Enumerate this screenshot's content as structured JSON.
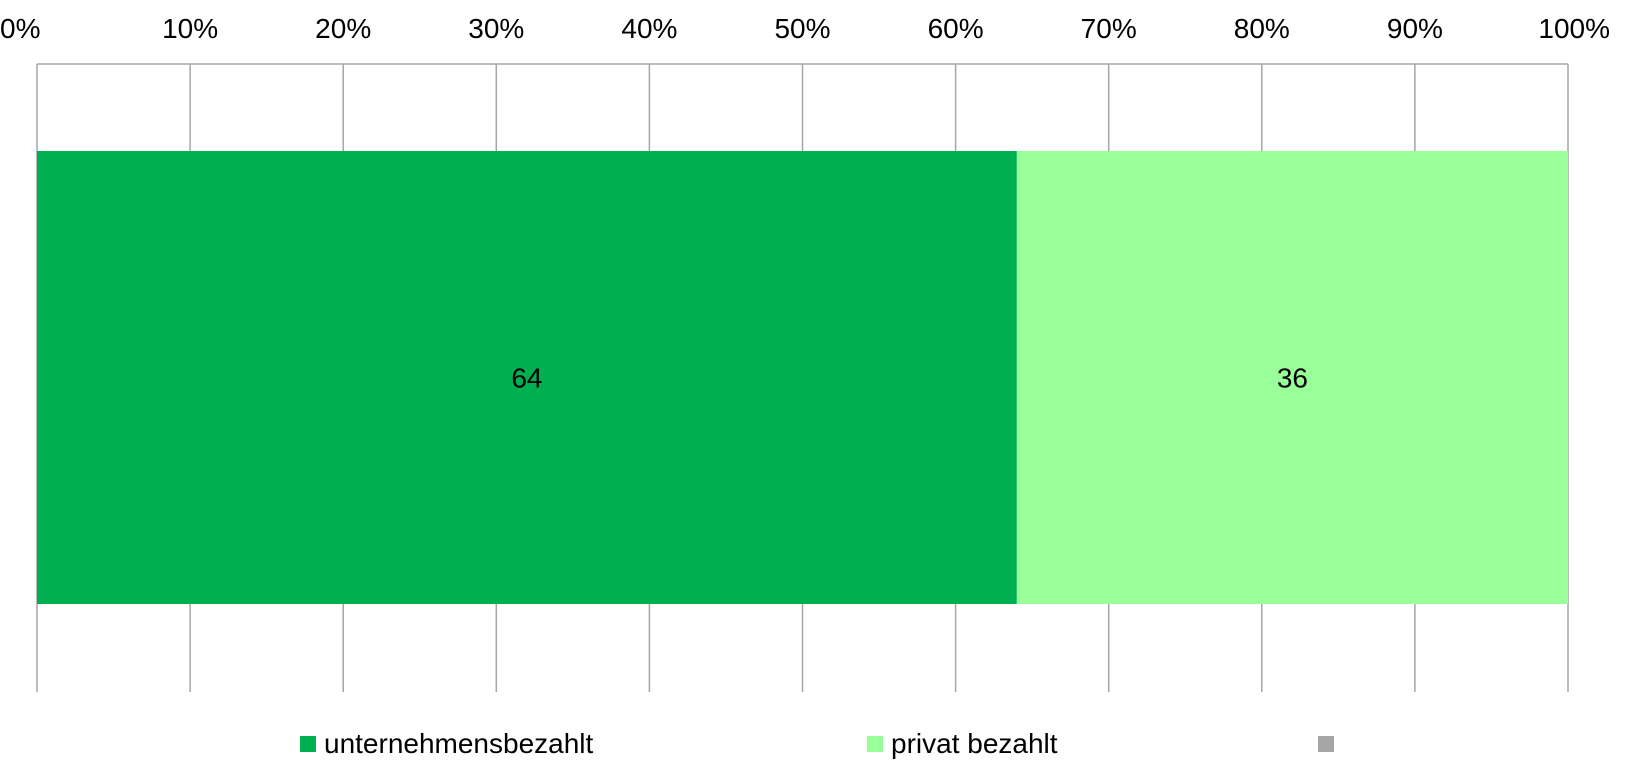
{
  "chart_data": {
    "type": "bar",
    "orientation": "horizontal",
    "stacked": true,
    "x_ticks": [
      "0%",
      "10%",
      "20%",
      "30%",
      "40%",
      "50%",
      "60%",
      "70%",
      "80%",
      "90%",
      "100%"
    ],
    "xlim": [
      0,
      100
    ],
    "x_axis_position": "top",
    "grid": true,
    "categories": [
      ""
    ],
    "series": [
      {
        "name": "unternehmensbezahlt",
        "values": [
          64
        ],
        "color": "#00b050",
        "label": "64"
      },
      {
        "name": "privat bezahlt",
        "values": [
          36
        ],
        "color": "#99ff99",
        "label": "36"
      },
      {
        "name": "",
        "values": [
          0
        ],
        "color": "#a6a6a6",
        "label": ""
      }
    ],
    "legend_position": "bottom"
  }
}
